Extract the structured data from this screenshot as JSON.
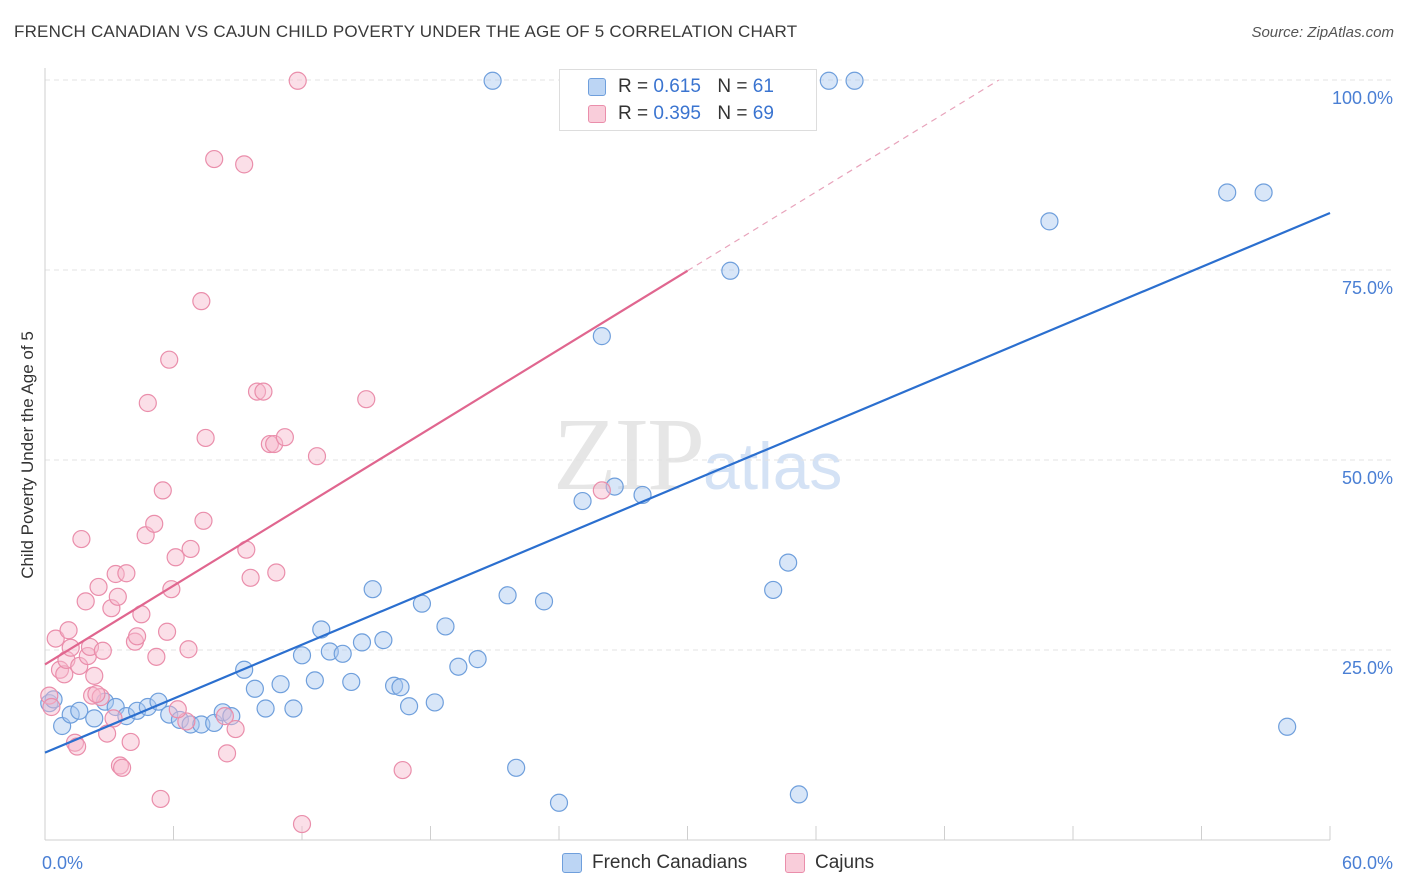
{
  "title": "FRENCH CANADIAN VS CAJUN CHILD POVERTY UNDER THE AGE OF 5 CORRELATION CHART",
  "source": "Source: ZipAtlas.com",
  "watermark": {
    "zip": "ZIP",
    "atlas": "atlas"
  },
  "legend": {
    "r_label": "R =",
    "n_label": "N =",
    "rows": [
      {
        "name": "French Canadians",
        "r": "0.615",
        "n": "61"
      },
      {
        "name": "Cajuns",
        "r": "0.395",
        "n": "69"
      }
    ]
  },
  "colors": {
    "blue_fill": "#a9c8ef",
    "blue_stroke": "#6f9fdc",
    "blue_line": "#2b6fcf",
    "pink_fill": "#f6b8cb",
    "pink_stroke": "#ea8eab",
    "pink_line": "#e0668f",
    "tick_text": "#4a7fd4",
    "grid": "#e3e3e3"
  },
  "chart_data": {
    "type": "scatter",
    "title": "FRENCH CANADIAN VS CAJUN CHILD POVERTY UNDER THE AGE OF 5 CORRELATION CHART",
    "xlabel": "",
    "ylabel": "Child Poverty Under the Age of 5",
    "xlim": [
      0,
      60
    ],
    "ylim": [
      0,
      100
    ],
    "x_ticks": [
      "0.0%",
      "60.0%"
    ],
    "y_ticks": [
      "25.0%",
      "50.0%",
      "75.0%",
      "100.0%"
    ],
    "grid": true,
    "legend_position": "top-center",
    "series": [
      {
        "name": "French Canadians",
        "r": 0.615,
        "n": 61,
        "trend": {
          "x0": 0,
          "y0": 11.5,
          "x1": 60,
          "y1": 82.5
        },
        "points": [
          [
            0.2,
            18.0
          ],
          [
            0.4,
            18.5
          ],
          [
            0.8,
            15.0
          ],
          [
            1.2,
            16.5
          ],
          [
            1.6,
            17.0
          ],
          [
            2.3,
            16.0
          ],
          [
            2.8,
            18.2
          ],
          [
            3.3,
            17.5
          ],
          [
            3.8,
            16.3
          ],
          [
            4.3,
            17.0
          ],
          [
            4.8,
            17.5
          ],
          [
            5.3,
            18.2
          ],
          [
            5.8,
            16.5
          ],
          [
            6.3,
            15.8
          ],
          [
            6.8,
            15.2
          ],
          [
            7.3,
            15.2
          ],
          [
            7.9,
            15.4
          ],
          [
            8.3,
            16.8
          ],
          [
            8.7,
            16.3
          ],
          [
            9.3,
            22.4
          ],
          [
            9.8,
            19.9
          ],
          [
            10.3,
            17.3
          ],
          [
            11.0,
            20.5
          ],
          [
            11.6,
            17.3
          ],
          [
            12.0,
            24.3
          ],
          [
            12.6,
            21.0
          ],
          [
            12.9,
            27.7
          ],
          [
            13.3,
            24.8
          ],
          [
            13.9,
            24.5
          ],
          [
            14.3,
            20.8
          ],
          [
            14.8,
            26.0
          ],
          [
            15.3,
            33.0
          ],
          [
            15.8,
            26.3
          ],
          [
            16.3,
            20.3
          ],
          [
            16.6,
            20.1
          ],
          [
            17.0,
            17.6
          ],
          [
            17.6,
            31.1
          ],
          [
            18.2,
            18.1
          ],
          [
            18.7,
            28.1
          ],
          [
            19.3,
            22.8
          ],
          [
            20.2,
            23.8
          ],
          [
            20.9,
            99.9
          ],
          [
            21.6,
            32.2
          ],
          [
            22.0,
            9.5
          ],
          [
            23.3,
            31.4
          ],
          [
            24.0,
            4.9
          ],
          [
            25.1,
            44.6
          ],
          [
            26.0,
            66.3
          ],
          [
            26.6,
            46.5
          ],
          [
            27.9,
            45.4
          ],
          [
            32.0,
            74.9
          ],
          [
            32.3,
            99.9
          ],
          [
            34.0,
            32.9
          ],
          [
            34.7,
            36.5
          ],
          [
            35.2,
            6.0
          ],
          [
            36.6,
            99.9
          ],
          [
            37.8,
            99.9
          ],
          [
            46.9,
            81.4
          ],
          [
            55.2,
            85.2
          ],
          [
            56.9,
            85.2
          ],
          [
            58.0,
            14.9
          ]
        ]
      },
      {
        "name": "Cajuns",
        "r": 0.395,
        "n": 69,
        "trend": {
          "x0": 0,
          "y0": 23.1,
          "x1": 30,
          "y1": 74.9
        },
        "points": [
          [
            0.2,
            19.0
          ],
          [
            0.3,
            17.5
          ],
          [
            0.5,
            26.5
          ],
          [
            0.7,
            22.4
          ],
          [
            0.9,
            21.8
          ],
          [
            1.0,
            23.7
          ],
          [
            1.1,
            27.6
          ],
          [
            1.2,
            25.3
          ],
          [
            1.4,
            12.8
          ],
          [
            1.6,
            22.9
          ],
          [
            1.7,
            39.6
          ],
          [
            1.9,
            31.4
          ],
          [
            2.0,
            24.2
          ],
          [
            2.1,
            25.4
          ],
          [
            2.2,
            19.0
          ],
          [
            2.3,
            21.6
          ],
          [
            2.5,
            33.3
          ],
          [
            2.6,
            18.8
          ],
          [
            2.7,
            24.9
          ],
          [
            2.9,
            14.0
          ],
          [
            3.1,
            30.5
          ],
          [
            3.3,
            35.0
          ],
          [
            3.4,
            32.0
          ],
          [
            3.5,
            9.8
          ],
          [
            3.6,
            9.5
          ],
          [
            3.8,
            35.1
          ],
          [
            4.0,
            12.9
          ],
          [
            4.2,
            26.1
          ],
          [
            4.5,
            29.7
          ],
          [
            4.7,
            40.1
          ],
          [
            4.8,
            57.5
          ],
          [
            5.1,
            41.6
          ],
          [
            5.2,
            24.1
          ],
          [
            5.4,
            5.4
          ],
          [
            5.5,
            46.0
          ],
          [
            5.7,
            27.4
          ],
          [
            5.8,
            63.2
          ],
          [
            5.9,
            33.0
          ],
          [
            6.1,
            37.2
          ],
          [
            6.6,
            15.6
          ],
          [
            6.7,
            25.1
          ],
          [
            6.8,
            38.3
          ],
          [
            7.3,
            70.9
          ],
          [
            7.4,
            42.0
          ],
          [
            7.5,
            52.9
          ],
          [
            7.9,
            89.6
          ],
          [
            8.4,
            16.3
          ],
          [
            8.5,
            11.4
          ],
          [
            8.9,
            14.6
          ],
          [
            9.4,
            38.2
          ],
          [
            9.6,
            34.5
          ],
          [
            9.9,
            59.0
          ],
          [
            10.2,
            59.0
          ],
          [
            10.5,
            52.1
          ],
          [
            10.7,
            52.1
          ],
          [
            10.8,
            35.2
          ],
          [
            11.2,
            53.0
          ],
          [
            11.8,
            99.9
          ],
          [
            12.0,
            2.1
          ],
          [
            12.7,
            50.5
          ],
          [
            15.0,
            58.0
          ],
          [
            16.7,
            9.2
          ],
          [
            26.0,
            46.0
          ],
          [
            9.3,
            88.9
          ],
          [
            4.3,
            26.8
          ],
          [
            1.5,
            12.3
          ],
          [
            3.2,
            16.0
          ],
          [
            6.2,
            17.2
          ],
          [
            2.4,
            19.2
          ]
        ]
      }
    ]
  }
}
